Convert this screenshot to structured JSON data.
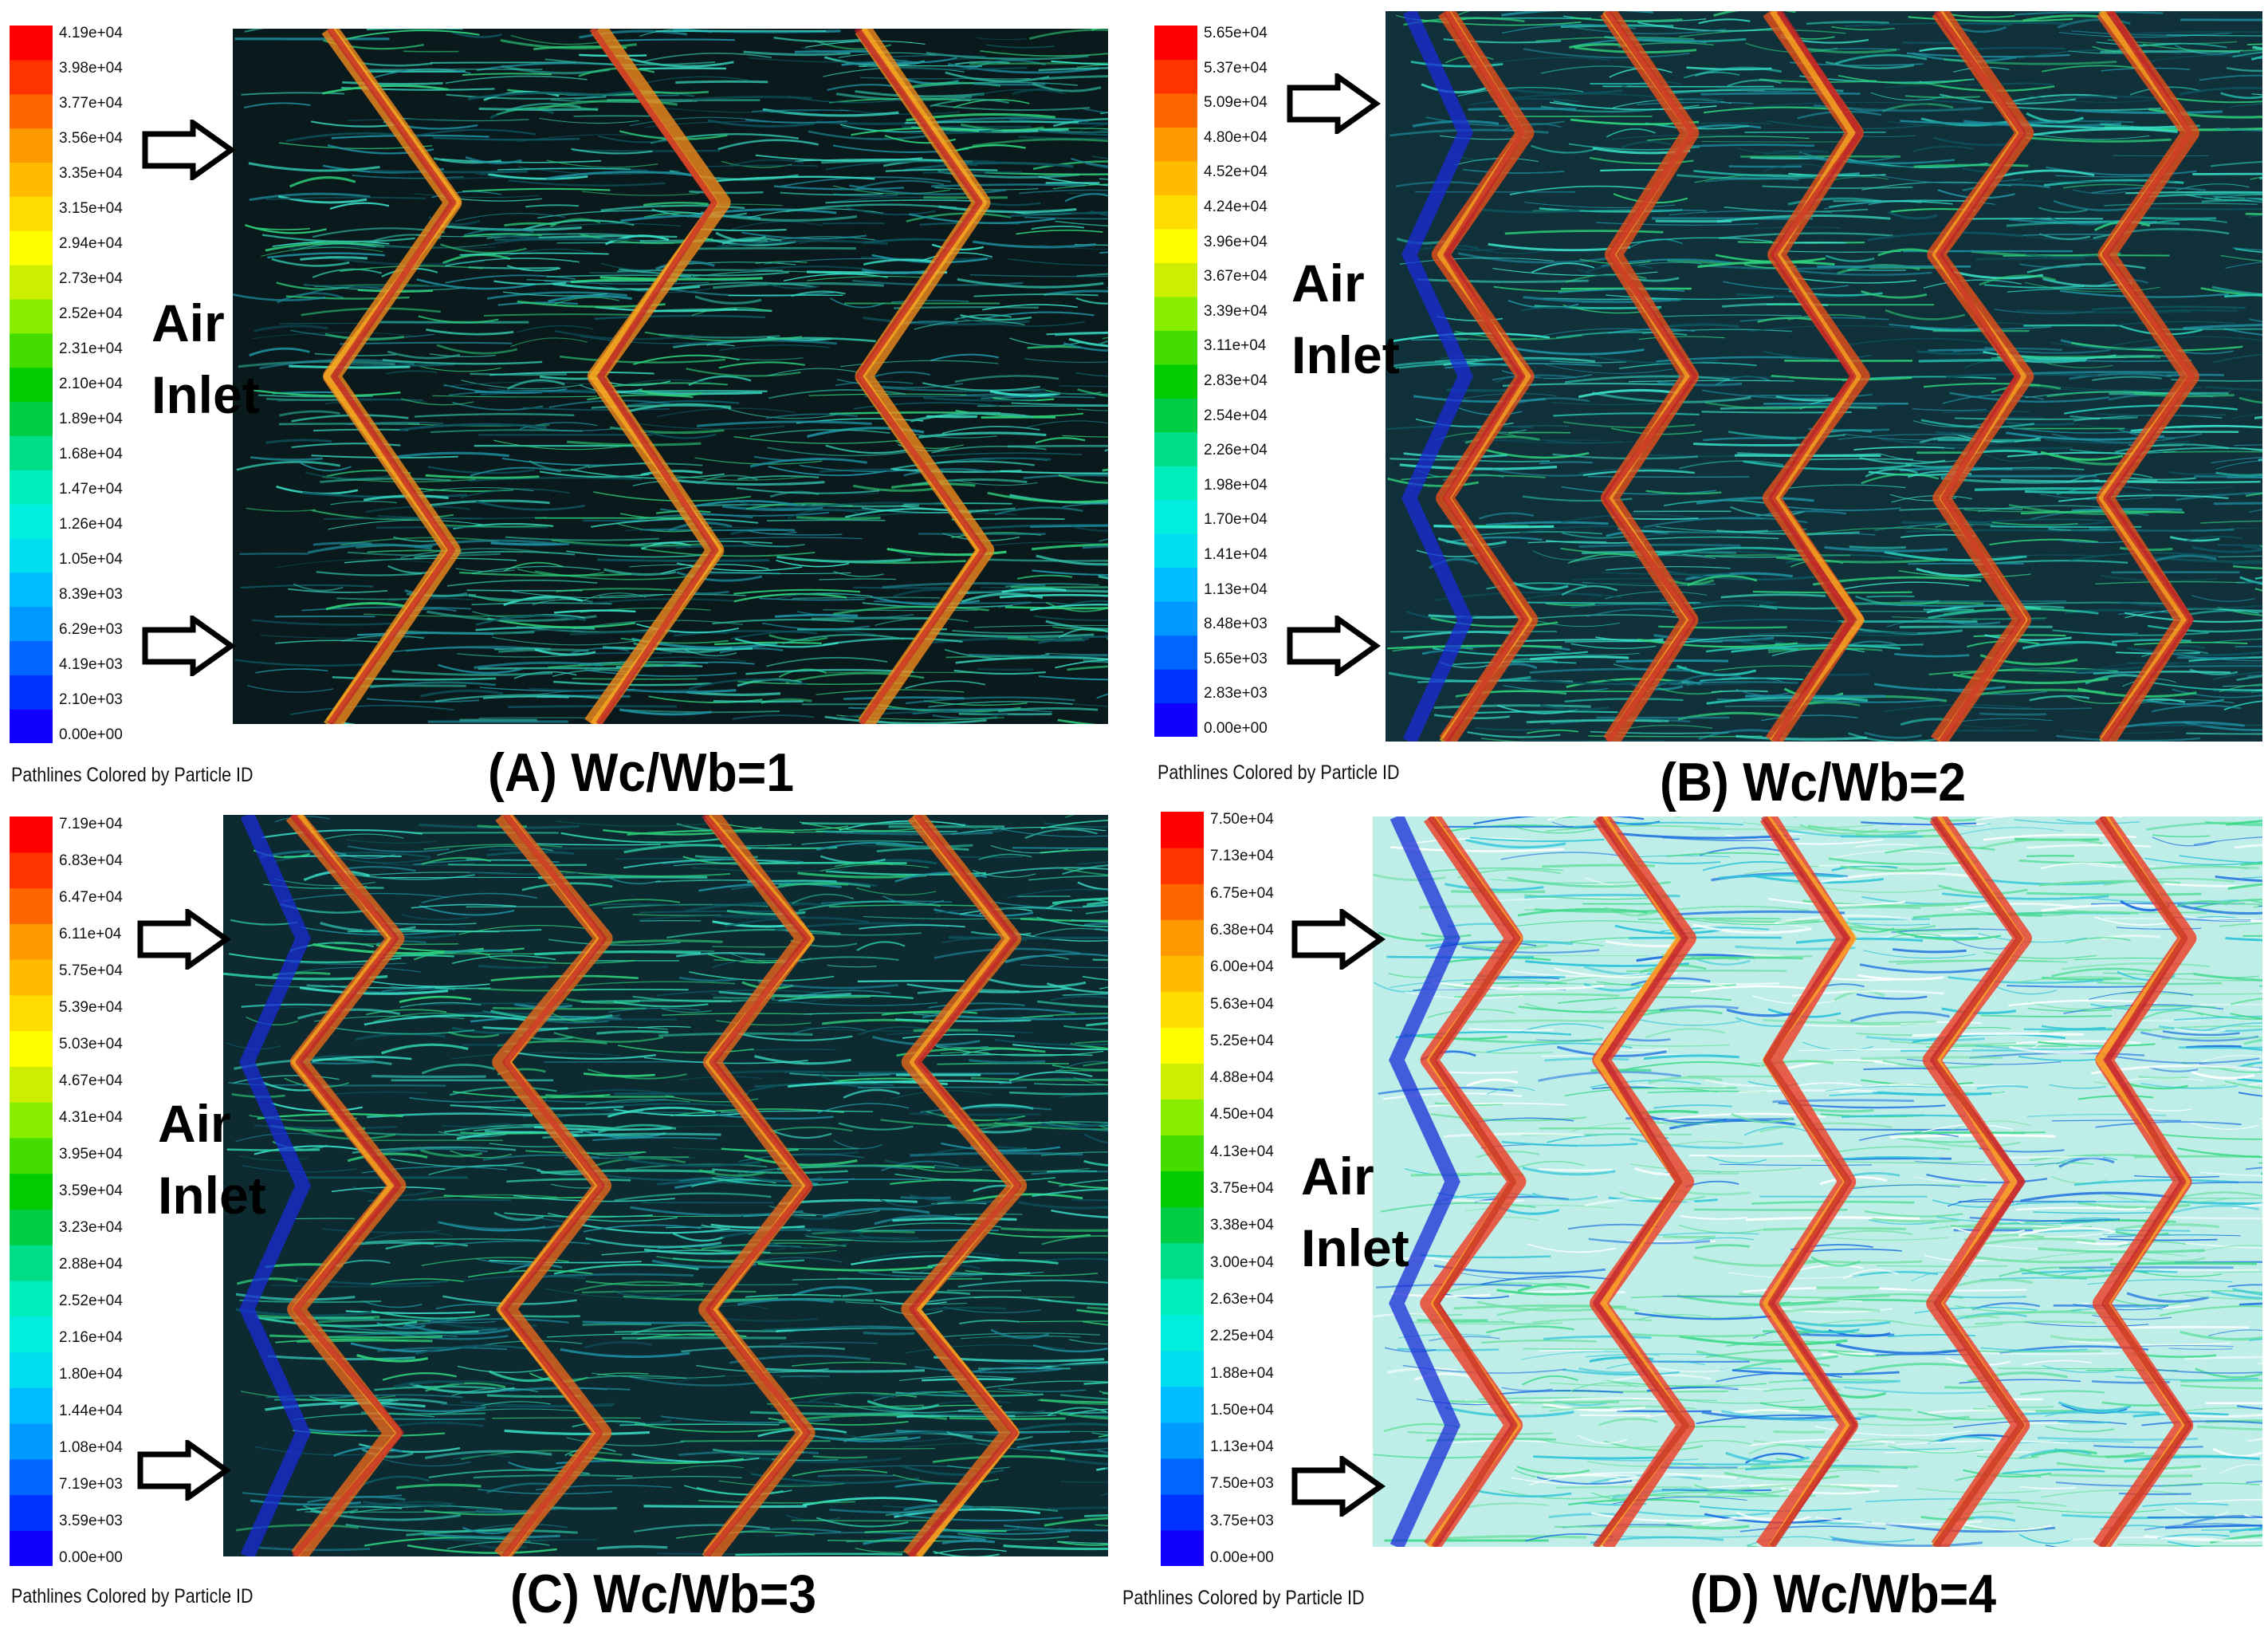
{
  "colormap": [
    "#1200ff",
    "#0033ff",
    "#0066ff",
    "#0099ff",
    "#00bbff",
    "#00ddee",
    "#00eedd",
    "#00eebb",
    "#00dd88",
    "#00cc44",
    "#00cc00",
    "#44dd00",
    "#88ee00",
    "#ccee00",
    "#ffff00",
    "#ffdd00",
    "#ffbb00",
    "#ff9900",
    "#ff6600",
    "#ff3300",
    "#ff0000"
  ],
  "caption": "Pathlines Colored by Particle ID",
  "air_inlet": {
    "line1": "Air",
    "line2": "Inlet"
  },
  "panels": [
    {
      "id": "A",
      "title": "(A) Wc/Wb=1",
      "ticks": [
        "4.19e+04",
        "3.98e+04",
        "3.77e+04",
        "3.56e+04",
        "3.35e+04",
        "3.15e+04",
        "2.94e+04",
        "2.73e+04",
        "2.52e+04",
        "2.31e+04",
        "2.10e+04",
        "1.89e+04",
        "1.68e+04",
        "1.47e+04",
        "1.26e+04",
        "1.05e+04",
        "8.39e+03",
        "6.29e+03",
        "4.19e+03",
        "2.10e+03",
        "0.00e+00"
      ],
      "background": "#0a1a1c",
      "flow_color": "#2fb9a2",
      "wave_color": "#f08a1c"
    },
    {
      "id": "B",
      "title": "(B) Wc/Wb=2",
      "ticks": [
        "5.65e+04",
        "5.37e+04",
        "5.09e+04",
        "4.80e+04",
        "4.52e+04",
        "4.24e+04",
        "3.96e+04",
        "3.67e+04",
        "3.39e+04",
        "3.11e+04",
        "2.83e+04",
        "2.54e+04",
        "2.26e+04",
        "1.98e+04",
        "1.70e+04",
        "1.41e+04",
        "1.13e+04",
        "8.48e+03",
        "5.65e+03",
        "2.83e+03",
        "0.00e+00"
      ],
      "background": "#10303a",
      "flow_color": "#27c8b4",
      "wave_color": "#e8501a"
    },
    {
      "id": "C",
      "title": "(C) Wc/Wb=3",
      "ticks": [
        "7.19e+04",
        "6.83e+04",
        "6.47e+04",
        "6.11e+04",
        "5.75e+04",
        "5.39e+04",
        "5.03e+04",
        "4.67e+04",
        "4.31e+04",
        "3.95e+04",
        "3.59e+04",
        "3.23e+04",
        "2.88e+04",
        "2.52e+04",
        "2.16e+04",
        "1.80e+04",
        "1.44e+04",
        "1.08e+04",
        "7.19e+03",
        "3.59e+03",
        "0.00e+00"
      ],
      "background": "#0c2a30",
      "flow_color": "#2ed0a8",
      "wave_color": "#e8681c"
    },
    {
      "id": "D",
      "title": "(D) Wc/Wb=4",
      "ticks": [
        "7.50e+04",
        "7.13e+04",
        "6.75e+04",
        "6.38e+04",
        "6.00e+04",
        "5.63e+04",
        "5.25e+04",
        "4.88e+04",
        "4.50e+04",
        "4.13e+04",
        "3.75e+04",
        "3.38e+04",
        "3.00e+04",
        "2.63e+04",
        "2.25e+04",
        "1.88e+04",
        "1.50e+04",
        "1.13e+04",
        "7.50e+03",
        "3.75e+03",
        "0.00e+00"
      ],
      "background": "#bfeee8",
      "flow_color": "#3fd98a",
      "wave_color": "#ee3a22"
    }
  ]
}
